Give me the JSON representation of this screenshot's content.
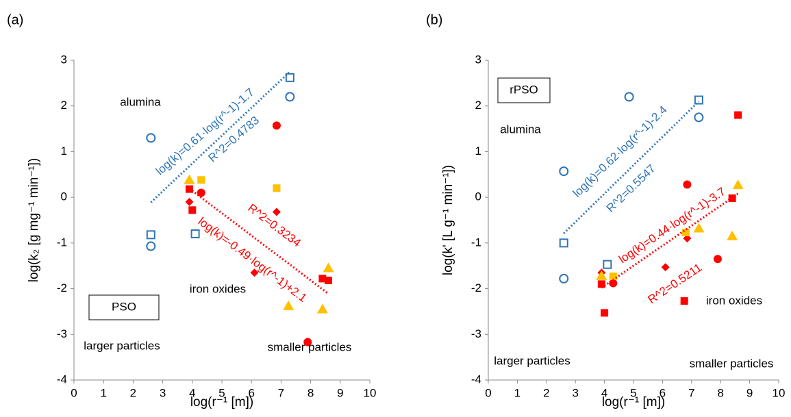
{
  "chart_data": [
    {
      "type": "scatter",
      "panel_label": "(a)",
      "xlabel": "log(r⁻¹ [m])",
      "ylabel": "log(k₂ [g mg⁻¹ min⁻¹])",
      "xlim": [
        0,
        10
      ],
      "ylim": [
        -4,
        3
      ],
      "xticks": [
        0,
        1,
        2,
        3,
        4,
        5,
        6,
        7,
        8,
        9,
        10
      ],
      "yticks": [
        -4,
        -3,
        -2,
        -1,
        0,
        1,
        2,
        3
      ],
      "series": [
        {
          "marker": "circle",
          "filled": false,
          "color": "#2e75b6",
          "x": [
            2.6,
            2.6,
            7.3
          ],
          "values": [
            1.3,
            -1.07,
            2.2
          ]
        },
        {
          "marker": "square",
          "filled": false,
          "color": "#2e75b6",
          "x": [
            2.6,
            4.1,
            7.3
          ],
          "values": [
            -0.82,
            -0.8,
            2.62
          ]
        },
        {
          "marker": "circle",
          "filled": true,
          "color": "#ff0000",
          "x": [
            4.3,
            6.85,
            7.9
          ],
          "values": [
            0.1,
            1.57,
            -3.17
          ]
        },
        {
          "marker": "square",
          "filled": true,
          "color": "#ff0000",
          "x": [
            3.9,
            4.0,
            8.4,
            8.6
          ],
          "values": [
            0.18,
            -0.28,
            -1.78,
            -1.82
          ]
        },
        {
          "marker": "diamond",
          "filled": true,
          "color": "#ff0000",
          "x": [
            3.9,
            6.1,
            6.85
          ],
          "values": [
            -0.1,
            -1.65,
            -0.32
          ]
        },
        {
          "marker": "square",
          "filled": true,
          "color": "#ffc000",
          "x": [
            4.3,
            6.85
          ],
          "values": [
            0.38,
            0.2
          ]
        },
        {
          "marker": "triangle",
          "filled": true,
          "color": "#ffc000",
          "x": [
            3.9,
            7.25,
            8.4,
            8.6
          ],
          "values": [
            0.38,
            -2.38,
            -2.45,
            -1.55
          ]
        },
        {
          "marker": "trend",
          "color": "#2e75b6",
          "x": [
            2.6,
            7.3
          ],
          "values": [
            -0.11,
            2.75
          ]
        },
        {
          "marker": "trend",
          "color": "#ff0000",
          "x": [
            3.9,
            8.6
          ],
          "values": [
            0.19,
            -2.11
          ]
        }
      ],
      "annotations": [
        "alumina",
        "iron oxides",
        "larger particles",
        "smaller particles",
        "PSO",
        "log(k)=0.61·log(r^-1)-1.7",
        "R^2=0.4783",
        "R^2=0.3234",
        "log(k)=-0.49·log(r^-1)+2.1"
      ]
    },
    {
      "type": "scatter",
      "panel_label": "(b)",
      "xlabel": "log(r⁻¹ [m])",
      "ylabel": "log(k' [L g⁻¹ min⁻¹])",
      "xlim": [
        0,
        10
      ],
      "ylim": [
        -4,
        3
      ],
      "xticks": [
        0,
        1,
        2,
        3,
        4,
        5,
        6,
        7,
        8,
        9,
        10
      ],
      "yticks": [
        -4,
        -3,
        -2,
        -1,
        0,
        1,
        2,
        3
      ],
      "series": [
        {
          "marker": "circle",
          "filled": false,
          "color": "#2e75b6",
          "x": [
            2.6,
            2.6,
            4.85,
            7.25
          ],
          "values": [
            0.57,
            -1.78,
            2.2,
            1.75
          ]
        },
        {
          "marker": "square",
          "filled": false,
          "color": "#2e75b6",
          "x": [
            2.6,
            4.1,
            7.25
          ],
          "values": [
            -1.0,
            -1.47,
            2.13
          ]
        },
        {
          "marker": "circle",
          "filled": true,
          "color": "#ff0000",
          "x": [
            4.3,
            6.85,
            7.9
          ],
          "values": [
            -1.88,
            0.28,
            -1.35
          ]
        },
        {
          "marker": "square",
          "filled": true,
          "color": "#ff0000",
          "x": [
            3.9,
            4.0,
            6.75,
            8.4,
            8.6
          ],
          "values": [
            -1.9,
            -2.53,
            -2.27,
            -0.02,
            1.8
          ]
        },
        {
          "marker": "diamond",
          "filled": true,
          "color": "#ff0000",
          "x": [
            3.9,
            6.1,
            6.85
          ],
          "values": [
            -1.65,
            -1.53,
            -0.9
          ]
        },
        {
          "marker": "square",
          "filled": true,
          "color": "#ffc000",
          "x": [
            4.3,
            6.8
          ],
          "values": [
            -1.73,
            -0.77
          ]
        },
        {
          "marker": "triangle",
          "filled": true,
          "color": "#ffc000",
          "x": [
            3.9,
            7.25,
            8.4,
            8.6
          ],
          "values": [
            -1.72,
            -0.68,
            -0.85,
            0.27
          ]
        },
        {
          "marker": "trend",
          "color": "#2e75b6",
          "x": [
            2.6,
            7.25
          ],
          "values": [
            -0.79,
            2.1
          ]
        },
        {
          "marker": "trend",
          "color": "#ff0000",
          "x": [
            3.9,
            8.6
          ],
          "values": [
            -1.98,
            0.08
          ]
        }
      ],
      "annotations": [
        "rPSO",
        "alumina",
        "iron oxides",
        "larger particles",
        "smaller particles",
        "log(k)=0.62·log(r^-1)-2.4",
        "R^2=0.5547",
        "log(k)=0.44·log(r^-1)-3.7",
        "R^2=0.5211"
      ]
    }
  ]
}
